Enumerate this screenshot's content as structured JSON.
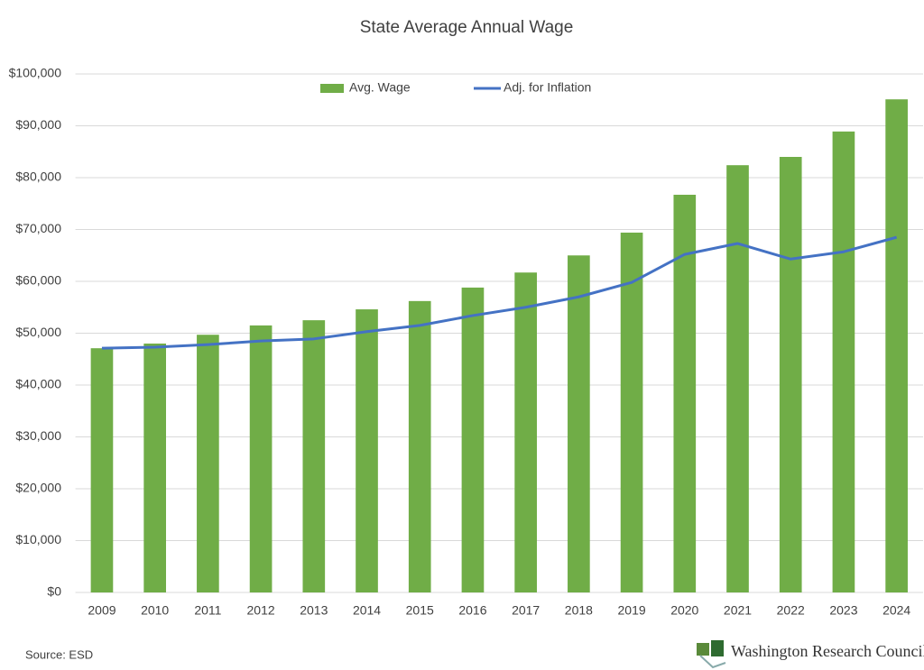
{
  "chart_data": {
    "type": "bar_line",
    "title": "State Average Annual Wage",
    "categories": [
      "2009",
      "2010",
      "2011",
      "2012",
      "2013",
      "2014",
      "2015",
      "2016",
      "2017",
      "2018",
      "2019",
      "2020",
      "2021",
      "2022",
      "2023",
      "2024"
    ],
    "series": [
      {
        "name": "Avg. Wage",
        "type": "bar",
        "color": "#70ad47",
        "values": [
          47100,
          48000,
          49700,
          51500,
          52500,
          54600,
          56200,
          58800,
          61700,
          65000,
          69400,
          76700,
          82400,
          84000,
          88900,
          95100
        ]
      },
      {
        "name": "Adj. for Inflation",
        "type": "line",
        "color": "#4472c4",
        "values": [
          47100,
          47300,
          47800,
          48500,
          48900,
          50300,
          51500,
          53400,
          55000,
          57000,
          59800,
          65200,
          67300,
          64300,
          65700,
          68500
        ]
      }
    ],
    "ylim": [
      0,
      100000
    ],
    "yticks": [
      {
        "value": 0,
        "label": "$0"
      },
      {
        "value": 10000,
        "label": "$10,000"
      },
      {
        "value": 20000,
        "label": "$20,000"
      },
      {
        "value": 30000,
        "label": "$30,000"
      },
      {
        "value": 40000,
        "label": "$40,000"
      },
      {
        "value": 50000,
        "label": "$50,000"
      },
      {
        "value": 60000,
        "label": "$60,000"
      },
      {
        "value": 70000,
        "label": "$70,000"
      },
      {
        "value": 80000,
        "label": "$80,000"
      },
      {
        "value": 90000,
        "label": "$90,000"
      },
      {
        "value": 100000,
        "label": "$100,000"
      }
    ],
    "grid": true,
    "legend": "top",
    "source": "Source: ESD",
    "logo_text": "Washington Research Council"
  }
}
